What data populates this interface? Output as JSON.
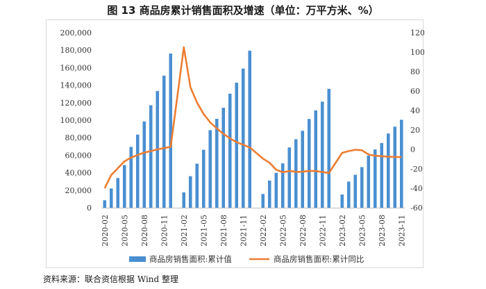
{
  "figure": {
    "title": "图 13    商品房累计销售面积及增速（单位：万平方米、%）",
    "source": "资料来源：联合资信根据 Wind 整理"
  },
  "chart_data": {
    "type": "bar+line",
    "categories": [
      "2020-02",
      "2020-03",
      "2020-04",
      "2020-05",
      "2020-06",
      "2020-07",
      "2020-08",
      "2020-09",
      "2020-10",
      "2020-11",
      "2020-12",
      "2021-01",
      "2021-02",
      "2021-03",
      "2021-04",
      "2021-05",
      "2021-06",
      "2021-07",
      "2021-08",
      "2021-09",
      "2021-10",
      "2021-11",
      "2021-12",
      "2022-01",
      "2022-02",
      "2022-03",
      "2022-04",
      "2022-05",
      "2022-06",
      "2022-07",
      "2022-08",
      "2022-09",
      "2022-10",
      "2022-11",
      "2022-12",
      "2023-01",
      "2023-02",
      "2023-03",
      "2023-04",
      "2023-05",
      "2023-06",
      "2023-07",
      "2023-08",
      "2023-09",
      "2023-10",
      "2023-11"
    ],
    "tick_labels": [
      "2020-02",
      "2020-05",
      "2020-08",
      "2020-11",
      "2021-02",
      "2021-05",
      "2021-08",
      "2021-11",
      "2022-02",
      "2022-05",
      "2022-08",
      "2022-11",
      "2023-02",
      "2023-05",
      "2023-08",
      "2023-11"
    ],
    "series": [
      {
        "name": "商品房销售面积:累计值",
        "type": "bar",
        "axis": "left",
        "color": "#4a8fd1",
        "values": [
          8500,
          22000,
          33900,
          48700,
          69500,
          83600,
          98500,
          117100,
          133300,
          150900,
          176100,
          null,
          17600,
          36000,
          50300,
          66200,
          88600,
          101600,
          114200,
          130300,
          142900,
          159000,
          179400,
          null,
          15700,
          31000,
          39800,
          50700,
          68900,
          78200,
          87900,
          101400,
          111200,
          121200,
          135800,
          null,
          15100,
          29900,
          37600,
          46400,
          59500,
          66600,
          73900,
          84800,
          92600,
          100500
        ]
      },
      {
        "name": "商品房销售面积:累计同比",
        "type": "line",
        "axis": "right",
        "color": "#ed7d31",
        "values": [
          -39.9,
          -26.3,
          -19.3,
          -12.3,
          -8.4,
          -5.8,
          -3.3,
          -1.8,
          0.0,
          1.3,
          2.6,
          null,
          104.9,
          63.8,
          48.1,
          36.3,
          27.7,
          21.5,
          15.9,
          11.3,
          7.3,
          4.8,
          1.9,
          null,
          -9.6,
          -13.8,
          -20.9,
          -23.6,
          -22.2,
          -23.1,
          -23.0,
          -22.2,
          -22.3,
          -23.3,
          -24.3,
          null,
          -3.6,
          -1.8,
          -0.4,
          -0.9,
          -5.3,
          -6.5,
          -7.1,
          -7.5,
          -7.8,
          -8.0
        ]
      }
    ],
    "y_left": {
      "min": 0,
      "max": 200000,
      "step": 20000
    },
    "y_right": {
      "min": -60,
      "max": 120,
      "step": 20
    },
    "grid": false,
    "legend_position": "bottom"
  }
}
